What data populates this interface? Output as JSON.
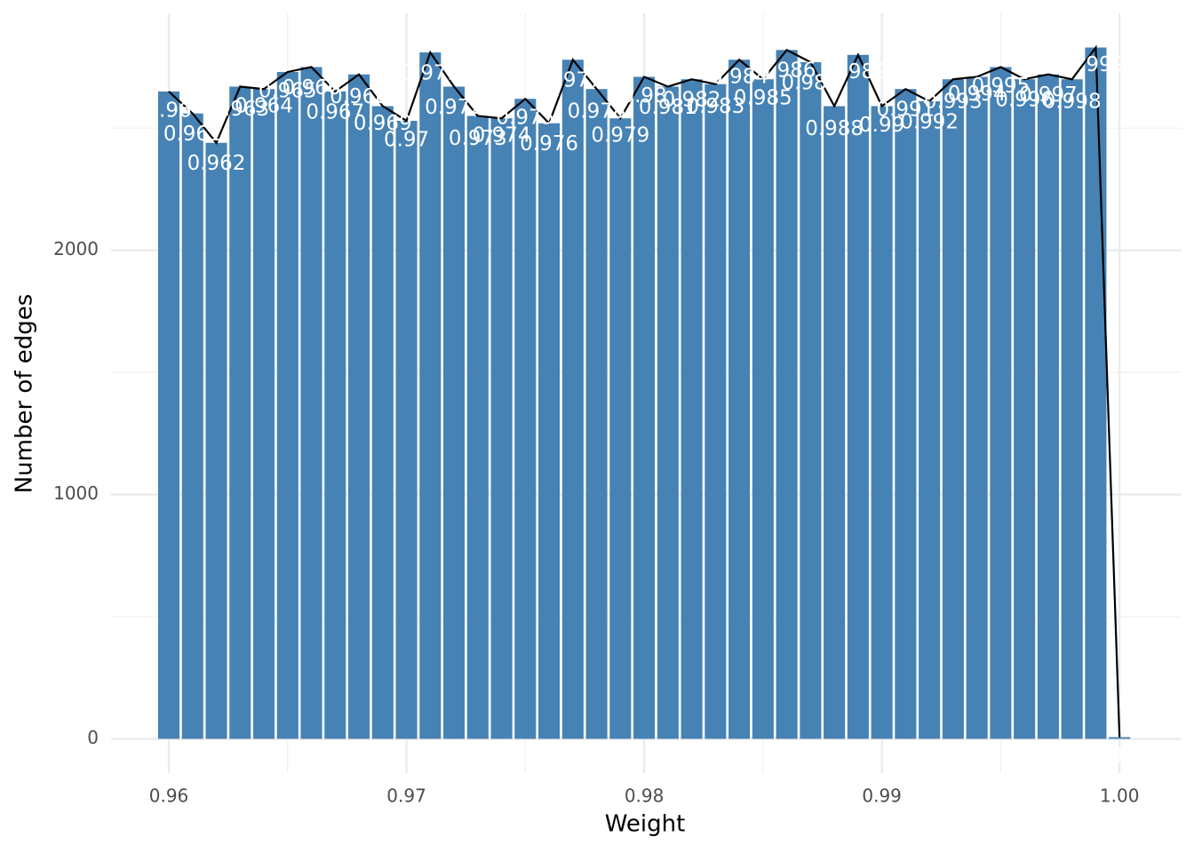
{
  "chart_data": {
    "type": "bar",
    "xlabel": "Weight",
    "ylabel": "Number of edges",
    "x": [
      0.96,
      0.961,
      0.962,
      0.963,
      0.964,
      0.965,
      0.966,
      0.967,
      0.968,
      0.969,
      0.97,
      0.971,
      0.972,
      0.973,
      0.974,
      0.975,
      0.976,
      0.977,
      0.978,
      0.979,
      0.98,
      0.981,
      0.982,
      0.983,
      0.984,
      0.985,
      0.986,
      0.987,
      0.988,
      0.989,
      0.99,
      0.991,
      0.992,
      0.993,
      0.994,
      0.995,
      0.996,
      0.997,
      0.998,
      0.999,
      1.0
    ],
    "values": [
      2650,
      2560,
      2440,
      2670,
      2660,
      2730,
      2750,
      2650,
      2720,
      2590,
      2530,
      2810,
      2670,
      2550,
      2540,
      2620,
      2520,
      2780,
      2660,
      2540,
      2710,
      2670,
      2700,
      2680,
      2780,
      2700,
      2820,
      2770,
      2590,
      2800,
      2590,
      2660,
      2610,
      2700,
      2710,
      2750,
      2700,
      2720,
      2700,
      2830,
      7
    ],
    "labels": [
      "0.96",
      "0.961",
      "0.962",
      "0.963",
      "0.964",
      "0.965",
      "0.966",
      "0.967",
      "0.968",
      "0.969",
      "0.97",
      "0.971",
      "0.972",
      "0.973",
      "0.974",
      "0.975",
      "0.976",
      "0.977",
      "0.978",
      "0.979",
      "0.98",
      "0.981",
      "0.982",
      "0.983",
      "0.984",
      "0.985",
      "0.986",
      "0.987",
      "0.988",
      "0.989",
      "0.99",
      "0.991",
      "0.992",
      "0.993",
      "0.994",
      "0.995",
      "0.996",
      "0.997",
      "0.998",
      "0.999",
      "1"
    ],
    "color": "#4682b4",
    "line_color": "#000000",
    "xlim": [
      0.95757,
      1.00261
    ],
    "ylim": [
      -140,
      2970
    ],
    "xticks": [
      {
        "value": 0.96,
        "label": "0.96"
      },
      {
        "value": 0.97,
        "label": "0.97"
      },
      {
        "value": 0.98,
        "label": "0.98"
      },
      {
        "value": 0.99,
        "label": "0.99"
      },
      {
        "value": 1.0,
        "label": "1.00"
      }
    ],
    "yticks": [
      0,
      1000,
      2000
    ],
    "grid": true
  }
}
